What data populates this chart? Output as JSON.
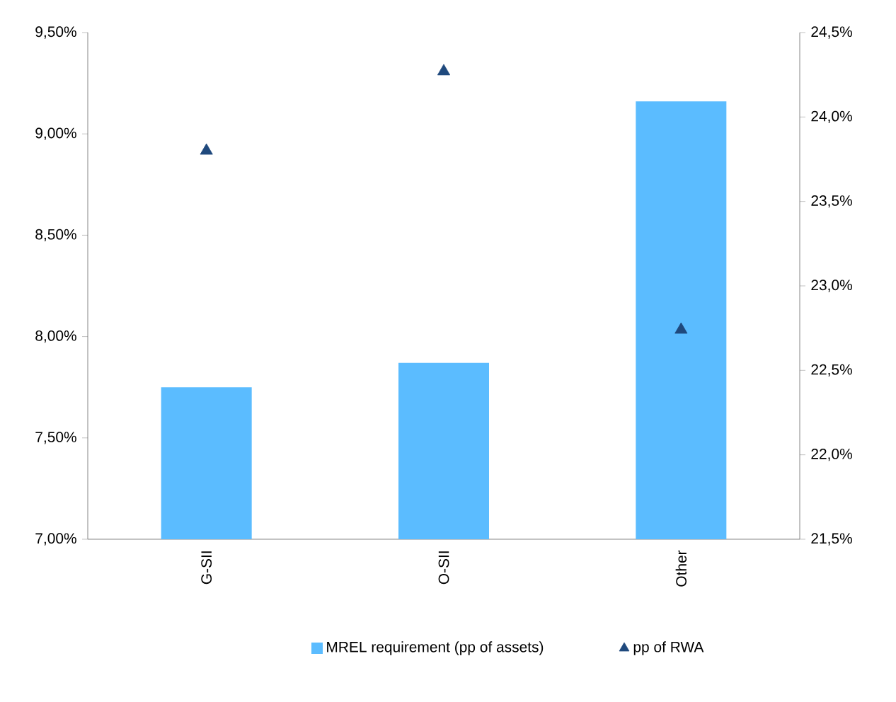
{
  "chart_data": {
    "type": "bar",
    "categories": [
      "G-SII",
      "O-SII",
      "Other"
    ],
    "series": [
      {
        "name": "MREL requirement (pp of assets)",
        "color": "#5bbcff",
        "values": [
          7.75,
          7.87,
          9.16
        ]
      },
      {
        "name": "pp of RWA",
        "type": "scatter",
        "axis": "y2",
        "marker": "triangle",
        "color": "#1f497d",
        "values": [
          23.8,
          24.27,
          22.74
        ]
      }
    ],
    "ylim": [
      7.0,
      9.5
    ],
    "yticks": [
      {
        "value": 7.0,
        "label": "7,00%"
      },
      {
        "value": 7.5,
        "label": "7,50%"
      },
      {
        "value": 8.0,
        "label": "8,00%"
      },
      {
        "value": 8.5,
        "label": "8,50%"
      },
      {
        "value": 9.0,
        "label": "9,00%"
      },
      {
        "value": 9.5,
        "label": "9,50%"
      }
    ],
    "y2lim": [
      21.5,
      24.5
    ],
    "y2ticks": [
      {
        "value": 21.5,
        "label": "21,5%"
      },
      {
        "value": 22.0,
        "label": "22,0%"
      },
      {
        "value": 22.5,
        "label": "22,5%"
      },
      {
        "value": 23.0,
        "label": "23,0%"
      },
      {
        "value": 23.5,
        "label": "23,5%"
      },
      {
        "value": 24.0,
        "label": "24,0%"
      },
      {
        "value": 24.5,
        "label": "24,5%"
      }
    ],
    "legend": "bottom"
  }
}
